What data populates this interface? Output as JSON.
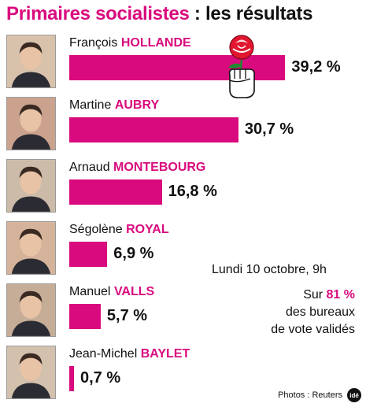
{
  "header": {
    "title_main": "Primaires socialistes",
    "title_sep": " : ",
    "title_rest": "les résultats"
  },
  "note": {
    "date": "Lundi 10 octobre, 9h",
    "line1_prefix": "Sur ",
    "line1_value": "81 %",
    "line2": "des bureaux",
    "line3": "de vote validés"
  },
  "footer": {
    "credits": "Photos : Reuters",
    "logo": "idé"
  },
  "colors": {
    "accent": "#d90a7d",
    "text": "#111111"
  },
  "chart_data": {
    "type": "bar",
    "orientation": "horizontal",
    "title": "Primaires socialistes : les résultats",
    "categories": [
      "François HOLLANDE",
      "Martine AUBRY",
      "Arnaud MONTEBOURG",
      "Ségolène ROYAL",
      "Manuel VALLS",
      "Jean-Michel BAYLET"
    ],
    "values": [
      39.2,
      30.7,
      16.8,
      6.9,
      5.7,
      0.7
    ],
    "unit": "%",
    "candidates": [
      {
        "first": "François",
        "last": "HOLLANDE",
        "value": 39.2,
        "label": "39,2 %"
      },
      {
        "first": "Martine",
        "last": "AUBRY",
        "value": 30.7,
        "label": "30,7 %"
      },
      {
        "first": "Arnaud",
        "last": "MONTEBOURG",
        "value": 16.8,
        "label": "16,8  %"
      },
      {
        "first": "Ségolène",
        "last": "ROYAL",
        "value": 6.9,
        "label": "6,9 %"
      },
      {
        "first": "Manuel",
        "last": "VALLS",
        "value": 5.7,
        "label": "5,7 %"
      },
      {
        "first": "Jean-Michel",
        "last": "BAYLET",
        "value": 0.7,
        "label": "0,7 %"
      }
    ]
  }
}
